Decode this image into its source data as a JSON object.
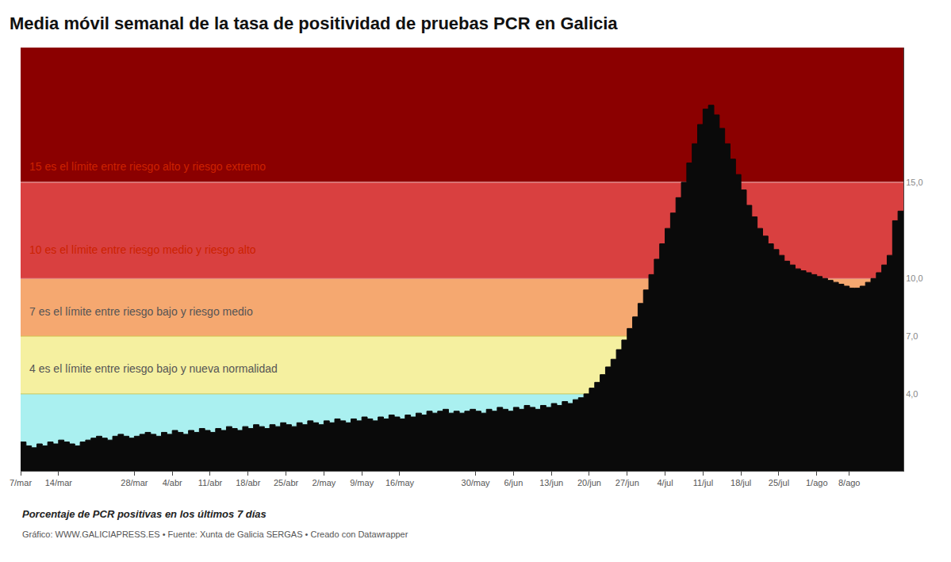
{
  "chart_data": {
    "type": "area",
    "line_style": "step",
    "title": "Media móvil semanal de la tasa de positividad de pruebas PCR en Galicia",
    "subtitle": "Porcentaje de PCR positivas en los últimos 7 días",
    "source": "Gráfico: WWW.GALICIAPRESS.ES • Fuente: Xunta de Galicia SERGAS • Creado con Datawrapper",
    "color": "#0a0a0a",
    "grid": false,
    "categories": [
      "7/mar",
      null,
      null,
      null,
      null,
      null,
      null,
      "14/mar",
      null,
      null,
      null,
      null,
      null,
      null,
      null,
      null,
      null,
      null,
      null,
      null,
      null,
      "28/mar",
      null,
      null,
      null,
      null,
      null,
      null,
      "4/abr",
      null,
      null,
      null,
      null,
      null,
      null,
      "11/abr",
      null,
      null,
      null,
      null,
      null,
      null,
      "18/abr",
      null,
      null,
      null,
      null,
      null,
      null,
      "25/abr",
      null,
      null,
      null,
      null,
      null,
      null,
      "2/may",
      null,
      null,
      null,
      null,
      null,
      null,
      "9/may",
      null,
      null,
      null,
      null,
      null,
      null,
      "16/may",
      null,
      null,
      null,
      null,
      null,
      null,
      null,
      null,
      null,
      null,
      null,
      null,
      null,
      "30/may",
      null,
      null,
      null,
      null,
      null,
      null,
      "6/jun",
      null,
      null,
      null,
      null,
      null,
      null,
      "13/jun",
      null,
      null,
      null,
      null,
      null,
      null,
      "20/jun",
      null,
      null,
      null,
      null,
      null,
      null,
      "27/jun",
      null,
      null,
      null,
      null,
      null,
      null,
      "4/jul",
      null,
      null,
      null,
      null,
      null,
      null,
      "11/jul",
      null,
      null,
      null,
      null,
      null,
      null,
      "18/jul",
      null,
      null,
      null,
      null,
      null,
      null,
      "25/jul",
      null,
      null,
      null,
      null,
      null,
      null,
      "1/ago",
      null,
      null,
      null,
      null,
      null,
      "8/ago",
      null,
      null,
      null,
      null,
      null,
      null,
      null,
      null,
      null,
      null
    ],
    "values": [
      1.4,
      1.5,
      1.3,
      1.2,
      1.4,
      1.3,
      1.5,
      1.4,
      1.6,
      1.5,
      1.4,
      1.3,
      1.5,
      1.6,
      1.7,
      1.8,
      1.7,
      1.6,
      1.8,
      1.9,
      1.8,
      1.7,
      1.8,
      1.9,
      2.0,
      1.9,
      1.8,
      2.0,
      1.9,
      2.1,
      2.0,
      1.9,
      2.1,
      2.0,
      2.2,
      2.1,
      2.0,
      2.2,
      2.1,
      2.3,
      2.2,
      2.1,
      2.3,
      2.2,
      2.4,
      2.3,
      2.2,
      2.4,
      2.3,
      2.5,
      2.4,
      2.3,
      2.5,
      2.4,
      2.6,
      2.5,
      2.4,
      2.6,
      2.5,
      2.7,
      2.6,
      2.5,
      2.7,
      2.6,
      2.8,
      2.7,
      2.6,
      2.8,
      2.7,
      2.9,
      2.8,
      2.7,
      2.9,
      2.8,
      3.0,
      2.9,
      3.1,
      3.0,
      3.1,
      3.2,
      3.0,
      3.1,
      3.0,
      3.1,
      3.2,
      3.1,
      3.0,
      3.2,
      3.1,
      3.3,
      3.2,
      3.1,
      3.3,
      3.2,
      3.4,
      3.3,
      3.2,
      3.4,
      3.3,
      3.5,
      3.4,
      3.6,
      3.5,
      3.7,
      3.8,
      4.0,
      4.3,
      4.6,
      5.0,
      5.4,
      5.8,
      6.3,
      6.8,
      7.4,
      8.0,
      8.7,
      9.4,
      10.2,
      11.0,
      11.8,
      12.6,
      13.4,
      14.2,
      15.0,
      16.0,
      17.0,
      18.0,
      18.8,
      19.0,
      18.5,
      17.8,
      17.0,
      16.2,
      15.4,
      14.6,
      13.8,
      13.2,
      12.6,
      12.2,
      11.8,
      11.5,
      11.2,
      10.9,
      10.7,
      10.5,
      10.4,
      10.3,
      10.2,
      10.1,
      10.0,
      9.9,
      9.8,
      9.7,
      9.6,
      9.5,
      9.5,
      9.6,
      9.8,
      10.0,
      10.3,
      10.7,
      11.2,
      13.0,
      13.5
    ],
    "ylim": [
      0,
      22
    ],
    "yticks": [
      {
        "value": 4,
        "label": "4,0"
      },
      {
        "value": 7,
        "label": "7,0"
      },
      {
        "value": 10,
        "label": "10,0"
      },
      {
        "value": 15,
        "label": "15,0"
      }
    ],
    "zones": [
      {
        "ymin": 0,
        "ymax": 4,
        "color": "#aaf0f0"
      },
      {
        "ymin": 4,
        "ymax": 7,
        "color": "#f5f0a0"
      },
      {
        "ymin": 7,
        "ymax": 10,
        "color": "#f5a870"
      },
      {
        "ymin": 10,
        "ymax": 15,
        "color": "#d94040"
      },
      {
        "ymin": 15,
        "ymax": 22,
        "color": "#8b0000"
      }
    ],
    "hlines": [
      {
        "y": 4,
        "color": "#c8c860"
      },
      {
        "y": 7,
        "color": "#d4c050"
      },
      {
        "y": 10,
        "color": "#e08080"
      },
      {
        "y": 15,
        "color": "#f0c0c0"
      }
    ],
    "annotations": [
      {
        "y": 15.8,
        "text": "15 es el límite entre riesgo alto y riesgo extremo",
        "color": "#cc2200"
      },
      {
        "y": 11.5,
        "text": "10 es el límite entre riesgo medio y riesgo alto",
        "color": "#cc2200"
      },
      {
        "y": 8.3,
        "text": "7 es el límite entre riesgo bajo y riesgo medio",
        "color": "#555555"
      },
      {
        "y": 5.3,
        "text": "4 es el límite entre riesgo bajo y nueva normalidad",
        "color": "#555555"
      }
    ]
  }
}
